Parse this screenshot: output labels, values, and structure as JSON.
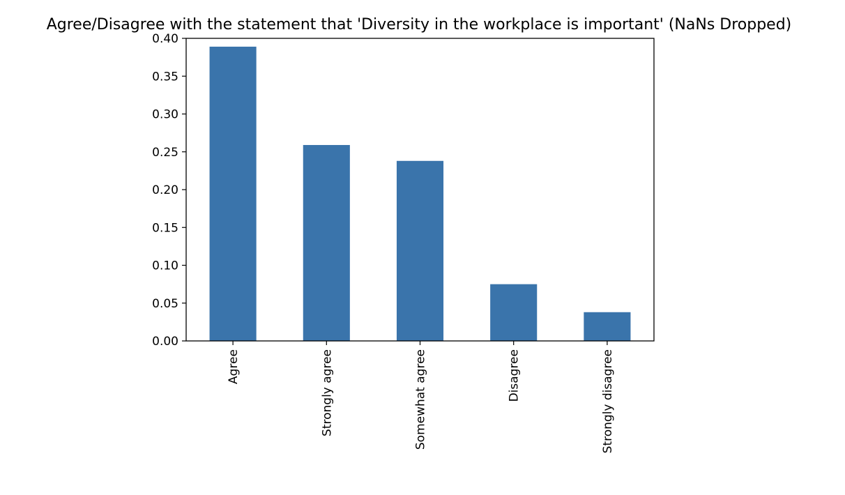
{
  "chart_data": {
    "type": "bar",
    "title": "Agree/Disagree with the statement that 'Diversity in the workplace is important' (NaNs Dropped)",
    "xlabel": "",
    "ylabel": "",
    "categories": [
      "Agree",
      "Strongly agree",
      "Somewhat agree",
      "Disagree",
      "Strongly disagree"
    ],
    "values": [
      0.389,
      0.259,
      0.238,
      0.075,
      0.038
    ],
    "ylim": [
      0,
      0.4
    ],
    "yticks": [
      "0.00",
      "0.05",
      "0.10",
      "0.15",
      "0.20",
      "0.25",
      "0.30",
      "0.35",
      "0.40"
    ],
    "grid": false,
    "legend": "none",
    "bar_color": "#3a74ab"
  }
}
